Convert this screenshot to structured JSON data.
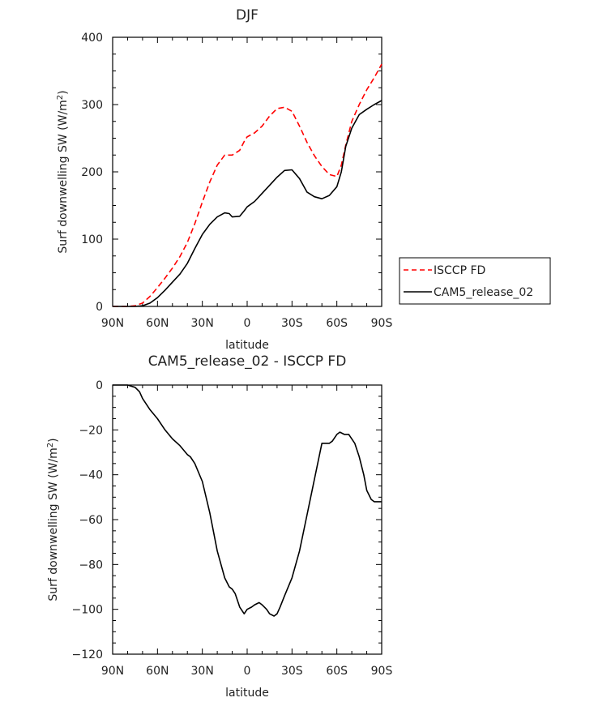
{
  "chart_data": [
    {
      "type": "line",
      "title": "DJF",
      "xlabel": "latitude",
      "ylabel": "Surf downwelling SW (W/m",
      "ylabel_sup": "2",
      "ylabel_close": ")",
      "xlim": [
        90,
        -90
      ],
      "ylim": [
        0,
        400
      ],
      "xticks": [
        90,
        60,
        30,
        0,
        -30,
        -60,
        -90
      ],
      "xtick_labels": [
        "90N",
        "60N",
        "30N",
        "0",
        "30S",
        "60S",
        "90S"
      ],
      "yticks": [
        0,
        100,
        200,
        300,
        400
      ],
      "ytick_labels": [
        "0",
        "100",
        "200",
        "300",
        "400"
      ],
      "legend": "right",
      "series": [
        {
          "name": "ISCCP FD",
          "color": "#ff0000",
          "dash": true,
          "x": [
            90,
            80,
            75,
            70,
            65,
            60,
            55,
            50,
            45,
            40,
            35,
            30,
            25,
            20,
            15,
            10,
            5,
            2,
            0,
            -5,
            -10,
            -15,
            -20,
            -25,
            -30,
            -35,
            -40,
            -45,
            -50,
            -55,
            -60,
            -63,
            -66,
            -70,
            -75,
            -80,
            -85,
            -90
          ],
          "y": [
            0,
            0,
            1,
            5,
            15,
            28,
            42,
            57,
            74,
            95,
            123,
            155,
            185,
            210,
            225,
            225,
            232,
            245,
            252,
            258,
            268,
            283,
            294,
            296,
            290,
            268,
            244,
            224,
            208,
            196,
            193,
            210,
            240,
            275,
            300,
            322,
            340,
            360
          ]
        },
        {
          "name": "CAM5_release_02",
          "color": "#000000",
          "dash": false,
          "x": [
            90,
            80,
            75,
            70,
            65,
            60,
            55,
            50,
            45,
            40,
            35,
            30,
            25,
            20,
            15,
            12,
            10,
            5,
            2,
            0,
            -5,
            -10,
            -15,
            -20,
            -25,
            -30,
            -35,
            -40,
            -45,
            -50,
            -55,
            -60,
            -63,
            -66,
            -70,
            -75,
            -80,
            -85,
            -90
          ],
          "y": [
            0,
            0,
            0,
            1,
            5,
            13,
            24,
            36,
            48,
            64,
            86,
            107,
            122,
            133,
            139,
            138,
            133,
            134,
            142,
            148,
            156,
            168,
            180,
            192,
            202,
            203,
            190,
            170,
            163,
            160,
            165,
            178,
            200,
            238,
            265,
            285,
            293,
            300,
            306
          ]
        }
      ]
    },
    {
      "type": "line",
      "title": "CAM5_release_02 - ISCCP FD",
      "xlabel": "latitude",
      "ylabel": "Surf downwelling SW (W/m",
      "ylabel_sup": "2",
      "ylabel_close": ")",
      "xlim": [
        90,
        -90
      ],
      "ylim": [
        -120,
        0
      ],
      "xticks": [
        90,
        60,
        30,
        0,
        -30,
        -60,
        -90
      ],
      "xtick_labels": [
        "90N",
        "60N",
        "30N",
        "0",
        "30S",
        "60S",
        "90S"
      ],
      "yticks": [
        0,
        -20,
        -40,
        -60,
        -80,
        -100,
        -120
      ],
      "ytick_labels": [
        "0",
        "−20",
        "−40",
        "−60",
        "−80",
        "−100",
        "−120"
      ],
      "series": [
        {
          "color": "#000000",
          "dash": false,
          "x": [
            90,
            85,
            80,
            75,
            72,
            70,
            65,
            60,
            55,
            50,
            45,
            40,
            38,
            35,
            30,
            25,
            20,
            15,
            12,
            10,
            8,
            5,
            2,
            0,
            -3,
            -5,
            -8,
            -10,
            -13,
            -15,
            -18,
            -20,
            -22,
            -25,
            -30,
            -35,
            -40,
            -45,
            -50,
            -55,
            -57,
            -60,
            -62,
            -65,
            -68,
            -70,
            -72,
            -75,
            -78,
            -80,
            -83,
            -85,
            -88,
            -90
          ],
          "y": [
            0,
            0,
            0,
            -1,
            -3,
            -6,
            -11,
            -15,
            -20,
            -24,
            -27,
            -31,
            -32,
            -35,
            -43,
            -57,
            -74,
            -86,
            -90,
            -91,
            -93,
            -99,
            -102,
            -100,
            -99,
            -98,
            -97,
            -98,
            -100,
            -102,
            -103,
            -102,
            -99,
            -94,
            -86,
            -74,
            -58,
            -42,
            -26,
            -26,
            -25,
            -22,
            -21,
            -22,
            -22,
            -24,
            -26,
            -32,
            -40,
            -47,
            -51,
            -52,
            -52,
            -52
          ]
        }
      ]
    }
  ]
}
